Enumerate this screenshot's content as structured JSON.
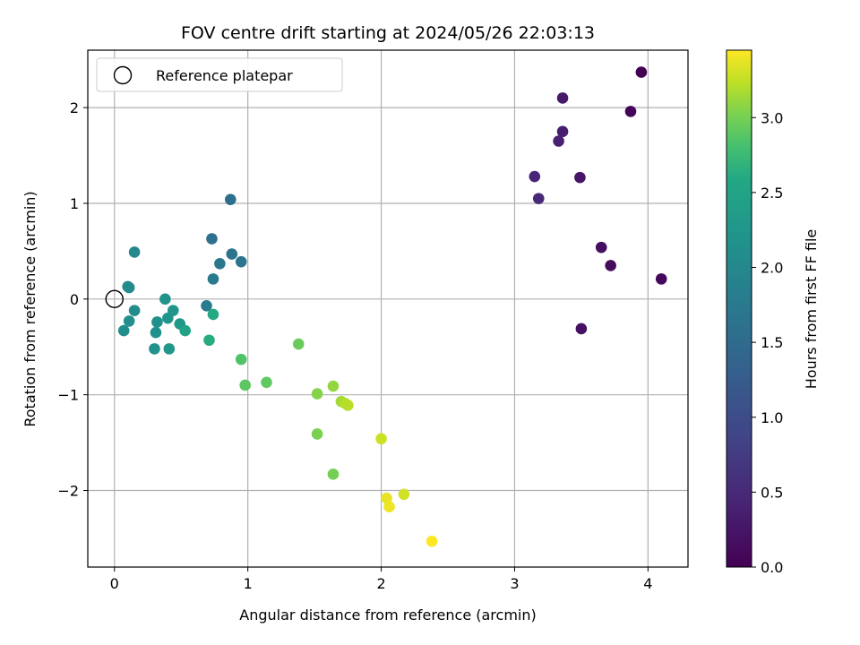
{
  "chart_data": {
    "type": "scatter",
    "title": "FOV centre drift starting at 2024/05/26 22:03:13",
    "xlabel": "Angular distance from reference (arcmin)",
    "ylabel": "Rotation from reference (arcmin)",
    "xlim": [
      -0.2,
      4.3
    ],
    "ylim": [
      -2.8,
      2.6
    ],
    "xticks": [
      0,
      1,
      2,
      3,
      4
    ],
    "yticks": [
      -2,
      -1,
      0,
      1,
      2
    ],
    "xtick_labels": [
      "0",
      "1",
      "2",
      "3",
      "4"
    ],
    "ytick_labels": [
      "−2",
      "−1",
      "0",
      "1",
      "2"
    ],
    "grid": true,
    "colormap": "viridis",
    "colorbar": {
      "label": "Hours from first FF file",
      "range": [
        0,
        3.45
      ],
      "ticks": [
        0.0,
        0.5,
        1.0,
        1.5,
        2.0,
        2.5,
        3.0
      ],
      "tick_labels": [
        "0.0",
        "0.5",
        "1.0",
        "1.5",
        "2.0",
        "2.5",
        "3.0"
      ]
    },
    "legend": {
      "location": "top-left",
      "entries": [
        "Reference platepar"
      ]
    },
    "reference_point": {
      "x": 0,
      "y": 0,
      "marker": "open-circle"
    },
    "points": [
      {
        "x": 3.95,
        "y": 2.37,
        "t": 0.0
      },
      {
        "x": 3.87,
        "y": 1.96,
        "t": 0.05
      },
      {
        "x": 4.1,
        "y": 0.21,
        "t": 0.1
      },
      {
        "x": 3.72,
        "y": 0.35,
        "t": 0.13
      },
      {
        "x": 3.65,
        "y": 0.54,
        "t": 0.16
      },
      {
        "x": 3.5,
        "y": -0.31,
        "t": 0.19
      },
      {
        "x": 3.49,
        "y": 1.27,
        "t": 0.25
      },
      {
        "x": 3.36,
        "y": 2.1,
        "t": 0.3
      },
      {
        "x": 3.36,
        "y": 1.75,
        "t": 0.35
      },
      {
        "x": 3.33,
        "y": 1.65,
        "t": 0.4
      },
      {
        "x": 3.15,
        "y": 1.28,
        "t": 0.45
      },
      {
        "x": 3.18,
        "y": 1.05,
        "t": 0.5
      },
      {
        "x": 0.87,
        "y": 1.04,
        "t": 1.55
      },
      {
        "x": 0.73,
        "y": 0.63,
        "t": 1.6
      },
      {
        "x": 0.88,
        "y": 0.47,
        "t": 1.65
      },
      {
        "x": 0.95,
        "y": 0.39,
        "t": 1.68
      },
      {
        "x": 0.79,
        "y": 0.37,
        "t": 1.72
      },
      {
        "x": 0.74,
        "y": 0.21,
        "t": 1.76
      },
      {
        "x": 0.69,
        "y": -0.07,
        "t": 1.8
      },
      {
        "x": 0.15,
        "y": 0.49,
        "t": 2.0
      },
      {
        "x": 0.1,
        "y": 0.13,
        "t": 2.03
      },
      {
        "x": 0.11,
        "y": 0.12,
        "t": 2.05
      },
      {
        "x": 0.15,
        "y": -0.12,
        "t": 2.08
      },
      {
        "x": 0.07,
        "y": -0.33,
        "t": 2.1
      },
      {
        "x": 0.11,
        "y": -0.23,
        "t": 2.12
      },
      {
        "x": 0.32,
        "y": -0.24,
        "t": 2.14
      },
      {
        "x": 0.31,
        "y": -0.35,
        "t": 2.16
      },
      {
        "x": 0.3,
        "y": -0.52,
        "t": 2.18
      },
      {
        "x": 0.38,
        "y": 0.0,
        "t": 2.2
      },
      {
        "x": 0.4,
        "y": -0.2,
        "t": 2.22
      },
      {
        "x": 0.44,
        "y": -0.12,
        "t": 2.24
      },
      {
        "x": 0.41,
        "y": -0.52,
        "t": 2.26
      },
      {
        "x": 0.49,
        "y": -0.26,
        "t": 2.3
      },
      {
        "x": 0.53,
        "y": -0.33,
        "t": 2.5
      },
      {
        "x": 0.74,
        "y": -0.16,
        "t": 2.6
      },
      {
        "x": 0.71,
        "y": -0.43,
        "t": 2.62
      },
      {
        "x": 0.95,
        "y": -0.63,
        "t": 2.85
      },
      {
        "x": 0.98,
        "y": -0.9,
        "t": 2.9
      },
      {
        "x": 1.14,
        "y": -0.87,
        "t": 2.92
      },
      {
        "x": 1.38,
        "y": -0.47,
        "t": 2.95
      },
      {
        "x": 1.52,
        "y": -0.99,
        "t": 3.05
      },
      {
        "x": 1.52,
        "y": -1.41,
        "t": 3.02
      },
      {
        "x": 1.64,
        "y": -1.83,
        "t": 3.0
      },
      {
        "x": 1.64,
        "y": -0.91,
        "t": 3.1
      },
      {
        "x": 1.7,
        "y": -1.07,
        "t": 3.15
      },
      {
        "x": 1.73,
        "y": -1.09,
        "t": 3.2
      },
      {
        "x": 1.75,
        "y": -1.11,
        "t": 3.22
      },
      {
        "x": 2.0,
        "y": -1.46,
        "t": 3.28
      },
      {
        "x": 2.17,
        "y": -2.04,
        "t": 3.3
      },
      {
        "x": 2.04,
        "y": -2.08,
        "t": 3.38
      },
      {
        "x": 2.06,
        "y": -2.17,
        "t": 3.4
      },
      {
        "x": 2.38,
        "y": -2.53,
        "t": 3.45
      }
    ]
  }
}
